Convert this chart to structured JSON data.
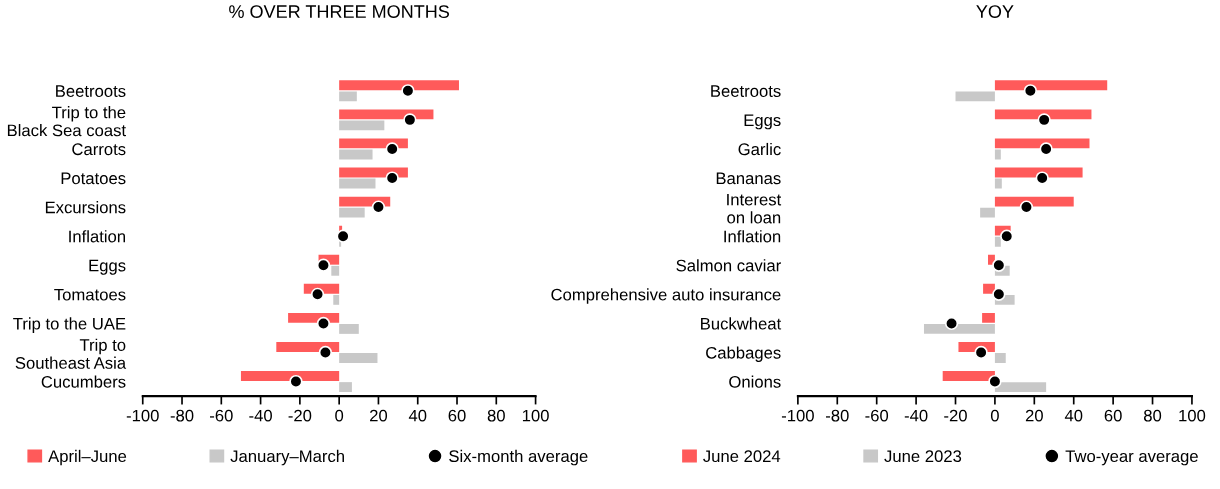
{
  "chart_data": [
    {
      "type": "bar",
      "orientation": "horizontal",
      "title": "% OVER THREE MONTHS",
      "categories": [
        "Beetroots",
        "Trip to the\nBlack Sea coast",
        "Carrots",
        "Potatoes",
        "Excursions",
        "Inflation",
        "Eggs",
        "Tomatoes",
        "Trip to the UAE",
        "Trip to\nSoutheast Asia",
        "Cucumbers"
      ],
      "series": [
        {
          "name": "April–June",
          "color": "#ff5a5a",
          "values": [
            61,
            48,
            35,
            35,
            26,
            1.5,
            -10.5,
            -18,
            -26,
            -32,
            -50
          ]
        },
        {
          "name": "January–March",
          "color": "#c8c8c8",
          "values": [
            9,
            23,
            17,
            18.5,
            13,
            1,
            -4,
            -3,
            10,
            19.5,
            6.5
          ]
        },
        {
          "name": "Six-month average",
          "type": "scatter",
          "color": "#000000",
          "values": [
            35,
            36,
            27,
            27,
            20,
            2,
            -8,
            -11,
            -8,
            -7,
            -22
          ]
        }
      ],
      "xlim": [
        -100,
        100
      ],
      "xticks": [
        -100,
        -80,
        -60,
        -40,
        -20,
        0,
        20,
        40,
        60,
        80,
        100
      ],
      "grid": false,
      "legend": "bottom",
      "marker": "circle"
    },
    {
      "type": "bar",
      "orientation": "horizontal",
      "title": "YOY",
      "categories": [
        "Beetroots",
        "Eggs",
        "Garlic",
        "Bananas",
        "Interest\non loan",
        "Inflation",
        "Salmon caviar",
        "Comprehensive auto insurance",
        "Buckwheat",
        "Cabbages",
        "Onions"
      ],
      "series": [
        {
          "name": "June 2024",
          "color": "#ff5a5a",
          "values": [
            57,
            49,
            48,
            44.5,
            40,
            8,
            -3.5,
            -6,
            -6.5,
            -18.5,
            -26.5
          ]
        },
        {
          "name": "June 2023",
          "color": "#c8c8c8",
          "values": [
            -20,
            0,
            3,
            3.5,
            -7.5,
            3,
            7.5,
            10,
            -36,
            5.5,
            26
          ]
        },
        {
          "name": "Two-year average",
          "type": "scatter",
          "color": "#000000",
          "values": [
            18,
            25,
            26,
            24,
            16,
            6,
            2,
            2,
            -22,
            -7,
            0
          ]
        }
      ],
      "xlim": [
        -100,
        100
      ],
      "xticks": [
        -100,
        -80,
        -60,
        -40,
        -20,
        0,
        20,
        40,
        60,
        80,
        100
      ],
      "grid": false,
      "legend": "bottom",
      "marker": "circle"
    }
  ]
}
